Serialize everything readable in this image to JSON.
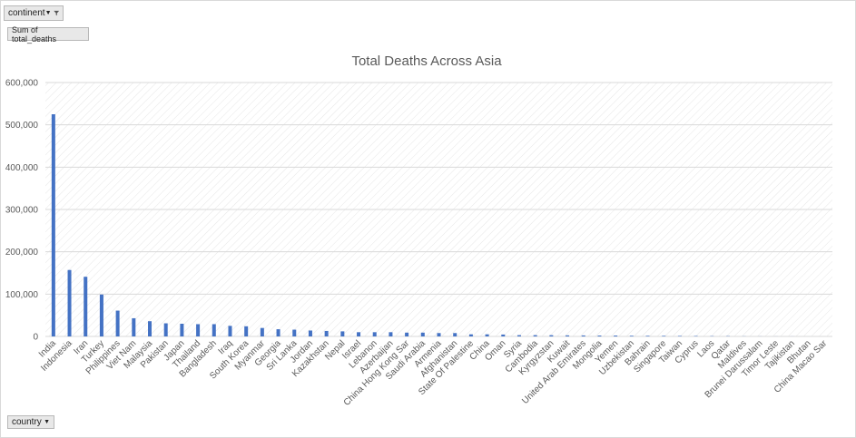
{
  "filter_button": {
    "label": "continent",
    "icon": "funnel-icon"
  },
  "value_button": {
    "label": "Sum of total_deaths"
  },
  "axis_button": {
    "label": "country",
    "icon": "dropdown-arrow-icon"
  },
  "colors": {
    "bar": "#4472c4",
    "grid": "#d9d9d9",
    "text": "#595959"
  },
  "chart_data": {
    "type": "bar",
    "title": "Total Deaths Across Asia",
    "xlabel": "",
    "ylabel": "",
    "ylim": [
      0,
      600000
    ],
    "yticks": [
      "0",
      "100,000",
      "200,000",
      "300,000",
      "400,000",
      "500,000",
      "600,000"
    ],
    "grid": true,
    "categories": [
      "India",
      "Indonesia",
      "Iran",
      "Turkey",
      "Philippines",
      "Viet Nam",
      "Malaysia",
      "Pakistan",
      "Japan",
      "Thailand",
      "Bangladesh",
      "Iraq",
      "South Korea",
      "Myanmar",
      "Georgia",
      "Sri Lanka",
      "Jordan",
      "Kazakhstan",
      "Nepal",
      "Israel",
      "Lebanon",
      "Azerbaijan",
      "China Hong Kong Sar",
      "Saudi Arabia",
      "Armenia",
      "Afghanistan",
      "State Of Palestine",
      "China",
      "Oman",
      "Syria",
      "Cambodia",
      "Kyrgyzstan",
      "Kuwait",
      "United Arab Emirates",
      "Mongolia",
      "Yemen",
      "Uzbekistan",
      "Bahrain",
      "Singapore",
      "Taiwan",
      "Cyprus",
      "Laos",
      "Qatar",
      "Maldives",
      "Brunei Darussalam",
      "Timor Leste",
      "Tajikistan",
      "Bhutan",
      "China Macao Sar"
    ],
    "values": [
      525000,
      157000,
      141000,
      99000,
      61000,
      43000,
      36000,
      31000,
      30000,
      29000,
      29000,
      25000,
      24000,
      20000,
      17000,
      16000,
      14000,
      13000,
      12000,
      10000,
      10000,
      10000,
      9000,
      9000,
      8000,
      8000,
      5000,
      5000,
      4500,
      3000,
      3000,
      2900,
      2500,
      2300,
      2100,
      2100,
      1600,
      1500,
      1400,
      1200,
      1000,
      700,
      680,
      300,
      200,
      130,
      120,
      20,
      10
    ]
  }
}
